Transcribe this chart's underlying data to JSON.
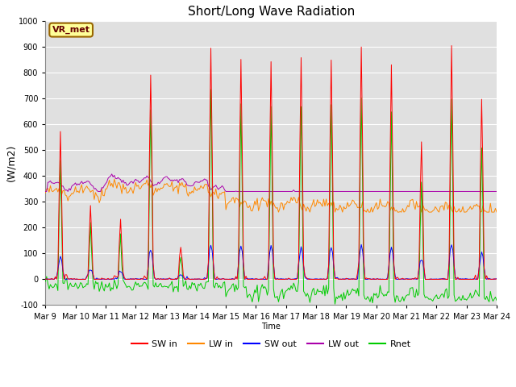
{
  "title": "Short/Long Wave Radiation",
  "ylabel": "(W/m2)",
  "xlabel": "Time",
  "ylim": [
    -100,
    1000
  ],
  "xlim": [
    0,
    360
  ],
  "x_tick_labels": [
    "Mar 9",
    "Mar 10",
    "Mar 11",
    "Mar 12",
    "Mar 13",
    "Mar 14",
    "Mar 15",
    "Mar 16",
    "Mar 17",
    "Mar 18",
    "Mar 19",
    "Mar 20",
    "Mar 21",
    "Mar 22",
    "Mar 23",
    "Mar 24"
  ],
  "x_tick_positions": [
    0,
    24,
    48,
    72,
    96,
    120,
    144,
    168,
    192,
    216,
    240,
    264,
    288,
    312,
    336,
    360
  ],
  "annotation_text": "VR_met",
  "annotation_box_color": "#FFFF99",
  "annotation_box_edge": "#996600",
  "colors": {
    "SW_in": "#FF0000",
    "LW_in": "#FF8800",
    "SW_out": "#0000FF",
    "LW_out": "#AA00AA",
    "Rnet": "#00CC00"
  },
  "legend_labels": [
    "SW in",
    "LW in",
    "SW out",
    "LW out",
    "Rnet"
  ],
  "plot_bg_color": "#E0E0E0",
  "grid_color": "#FFFFFF",
  "title_fontsize": 11,
  "tick_fontsize": 7,
  "ylabel_fontsize": 9
}
